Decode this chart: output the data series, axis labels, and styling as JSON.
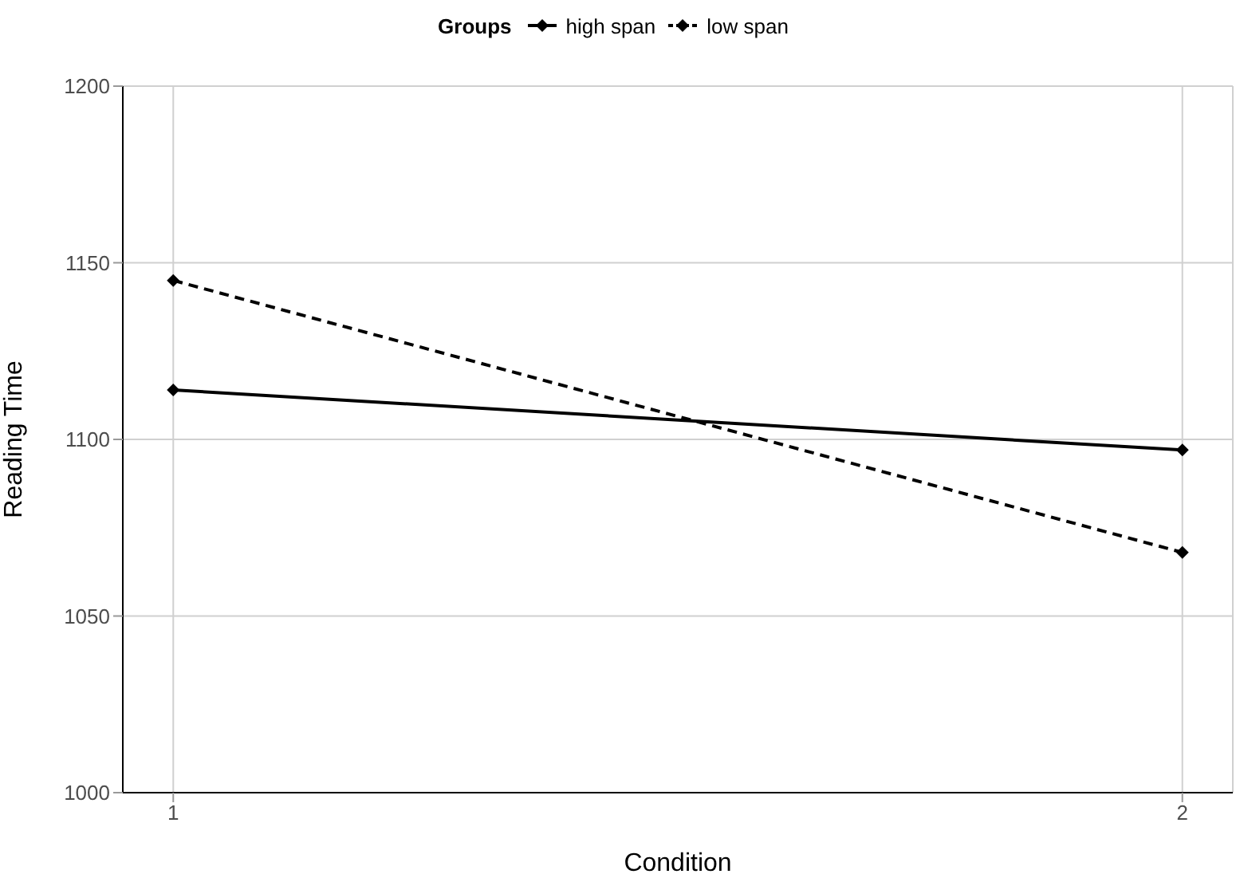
{
  "chart_data": {
    "type": "line",
    "xlabel": "Condition",
    "ylabel": "Reading Time",
    "legend_title": "Groups",
    "x": [
      1,
      2
    ],
    "series": [
      {
        "name": "high span",
        "color": "#000000",
        "values": [
          1114,
          1097
        ],
        "line_style": "solid"
      },
      {
        "name": "low span",
        "color": "#000000",
        "values": [
          1145,
          1068
        ],
        "line_style": "dashed"
      }
    ],
    "xlim": [
      0.95,
      2.05
    ],
    "xticks": [
      1,
      2
    ],
    "ylim": [
      1000,
      1200
    ],
    "yticks": [
      1000,
      1050,
      1100,
      1150,
      1200
    ],
    "grid": true,
    "legend": "top",
    "marker": "diamond"
  }
}
